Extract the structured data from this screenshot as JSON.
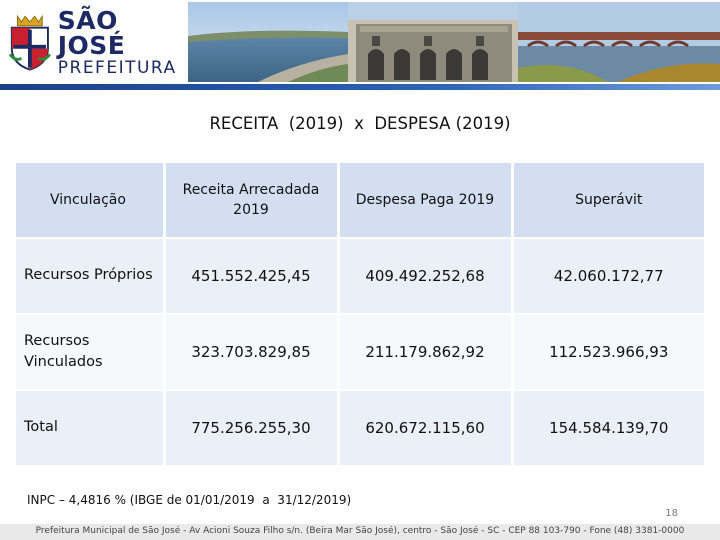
{
  "header": {
    "logo_main": "SÃO JOSÉ",
    "logo_sub": "PREFEITURA"
  },
  "title": "RECEITA  (2019)  x  DESPESA (2019)",
  "table": {
    "columns": [
      "Vinculação",
      "Receita Arrecadada 2019",
      "Despesa Paga 2019",
      "Superávit"
    ],
    "rows": [
      {
        "label": "Recursos Próprios",
        "receita": "451.552.425,45",
        "despesa": "409.492.252,68",
        "superavit": "42.060.172,77"
      },
      {
        "label": "Recursos Vinculados",
        "receita": "323.703.829,85",
        "despesa": "211.179.862,92",
        "superavit": "112.523.966,93"
      },
      {
        "label": "Total",
        "receita": "775.256.255,30",
        "despesa": "620.672.115,60",
        "superavit": "154.584.139,70"
      }
    ]
  },
  "note": "INPC – 4,4816 % (IBGE de 01/01/2019  a  31/12/2019)",
  "page_number": "18",
  "footer": "Prefeitura Municipal de São José - Av Acioni Souza Filho s/n. (Beira Mar São José), centro - São José - SC - CEP 88 103-790 - Fone (48) 3381-0000",
  "colors": {
    "brand_navy": "#1d2a64",
    "header_rule": "#2a63b8",
    "table_header_bg": "#d3dff1",
    "table_row_bg": "#eaeff8"
  }
}
